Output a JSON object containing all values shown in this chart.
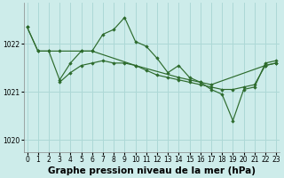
{
  "background_color": "#cdecea",
  "grid_color": "#add8d6",
  "line_color": "#2d6b2d",
  "marker_color": "#2d6b2d",
  "series": [
    {
      "x": [
        0,
        1,
        2,
        3,
        4,
        5,
        6,
        7,
        8,
        9,
        10,
        11,
        12,
        13,
        14,
        15,
        16,
        17,
        18,
        19,
        20,
        21,
        22,
        23
      ],
      "y": [
        1022.35,
        1021.85,
        1021.85,
        1021.25,
        1021.6,
        1021.85,
        1021.85,
        1022.2,
        1022.3,
        1022.55,
        1022.05,
        1021.95,
        1021.7,
        1021.4,
        1021.55,
        1021.3,
        1021.2,
        1021.05,
        1020.95,
        1020.4,
        1021.05,
        1021.1,
        1021.6,
        1021.65
      ]
    },
    {
      "x": [
        0,
        1,
        2,
        3,
        5,
        6,
        10,
        14,
        15,
        16,
        17,
        22,
        23
      ],
      "y": [
        1022.35,
        1021.85,
        1021.85,
        1021.85,
        1021.85,
        1021.85,
        1021.55,
        1021.3,
        1021.25,
        1021.2,
        1021.15,
        1021.55,
        1021.6
      ]
    },
    {
      "x": [
        3,
        4,
        5,
        6,
        7,
        8,
        9,
        10,
        11,
        12,
        13,
        14,
        15,
        16,
        17,
        18,
        19,
        20,
        21,
        22,
        23
      ],
      "y": [
        1021.2,
        1021.4,
        1021.55,
        1021.6,
        1021.65,
        1021.6,
        1021.6,
        1021.55,
        1021.45,
        1021.35,
        1021.3,
        1021.25,
        1021.2,
        1021.15,
        1021.1,
        1021.05,
        1021.05,
        1021.1,
        1021.15,
        1021.55,
        1021.6
      ]
    }
  ],
  "ylabel_ticks": [
    1020,
    1021,
    1022
  ],
  "xlabel_ticks": [
    0,
    1,
    2,
    3,
    4,
    5,
    6,
    7,
    8,
    9,
    10,
    11,
    12,
    13,
    14,
    15,
    16,
    17,
    18,
    19,
    20,
    21,
    22,
    23
  ],
  "ylim": [
    1019.75,
    1022.85
  ],
  "xlim": [
    -0.3,
    23.3
  ],
  "xlabel": "Graphe pression niveau de la mer (hPa)",
  "xlabel_fontsize": 7.5,
  "tick_fontsize": 5.5
}
